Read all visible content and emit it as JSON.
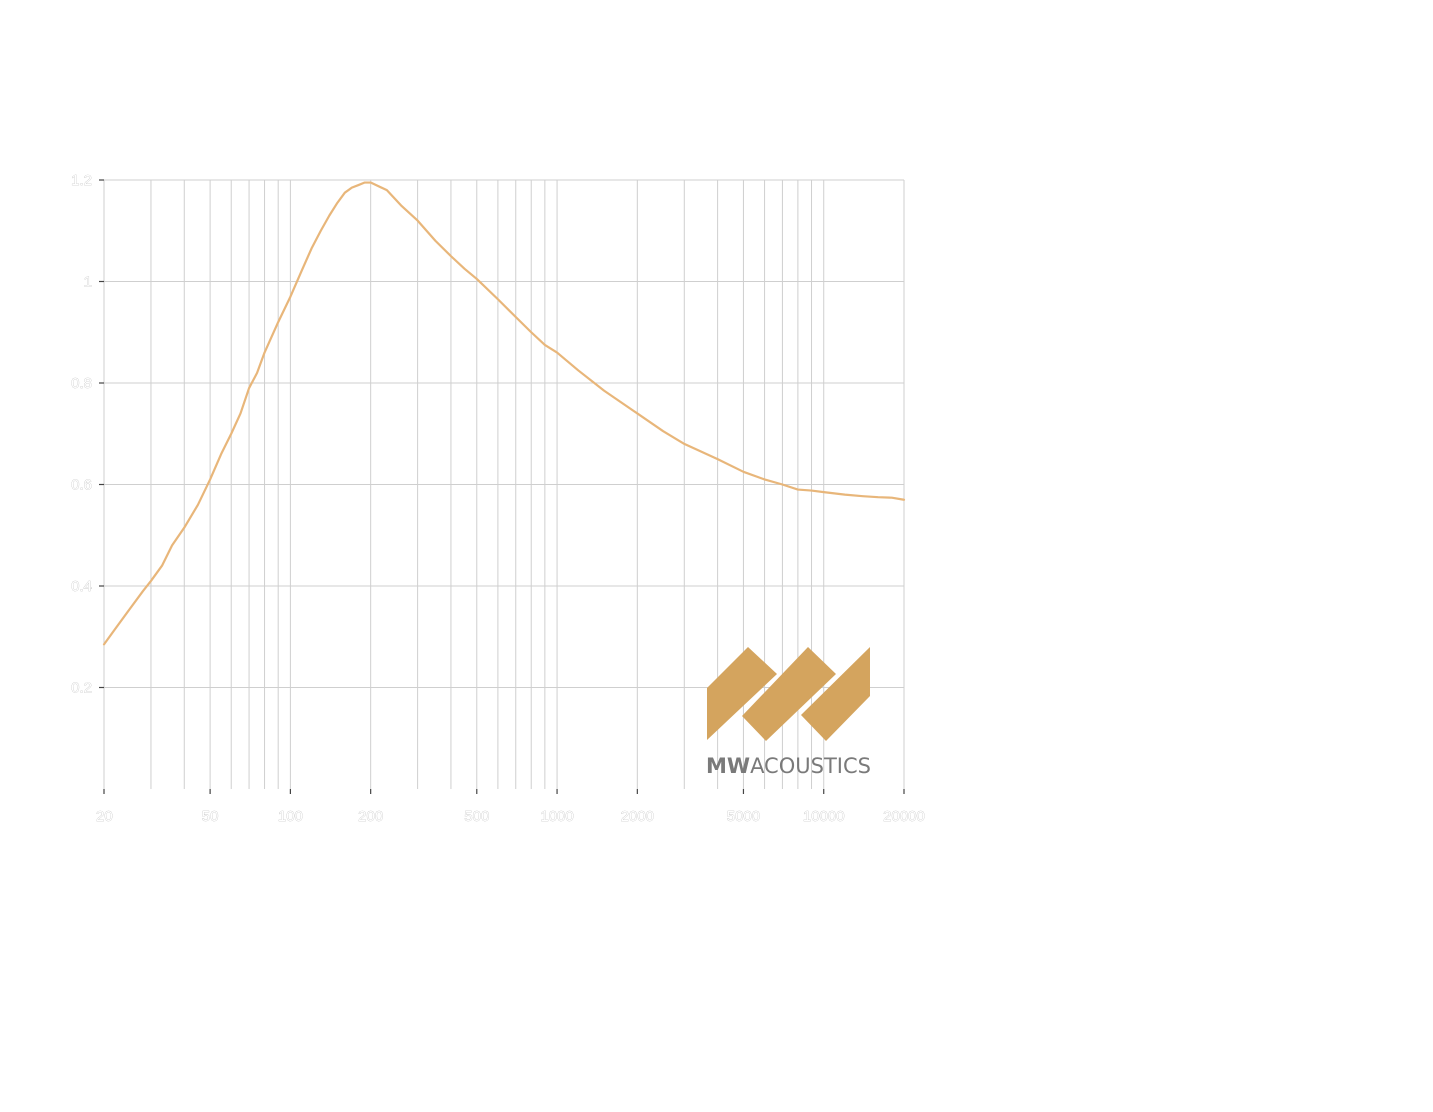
{
  "chart_data": {
    "type": "line",
    "title": "",
    "xlabel": "",
    "ylabel": "",
    "xscale": "log",
    "xlim": [
      20,
      20000
    ],
    "ylim": [
      0,
      1.2
    ],
    "grid": true,
    "x_ticks": [
      20,
      50,
      100,
      200,
      500,
      1000,
      2000,
      5000,
      10000,
      20000
    ],
    "x_tick_labels": [
      "20",
      "50",
      "100",
      "200",
      "500",
      "1000",
      "2000",
      "5000",
      "10000",
      "20000"
    ],
    "y_ticks": [
      0.2,
      0.4,
      0.6,
      0.8,
      1,
      1.2
    ],
    "y_tick_labels": [
      "0.2",
      "0.4",
      "0.6",
      "0.8",
      "1",
      "1.2"
    ],
    "series": [
      {
        "color": "#E8B67A",
        "x": [
          20,
          22,
          25,
          28,
          30,
          33,
          36,
          40,
          45,
          50,
          55,
          60,
          65,
          70,
          75,
          80,
          90,
          100,
          110,
          120,
          130,
          140,
          150,
          160,
          170,
          180,
          190,
          200,
          230,
          260,
          300,
          350,
          400,
          450,
          500,
          600,
          700,
          800,
          900,
          1000,
          1200,
          1500,
          2000,
          2500,
          3000,
          4000,
          5000,
          6000,
          7000,
          8000,
          9000,
          10000,
          12000,
          14000,
          16000,
          18000,
          20000
        ],
        "values": [
          0.285,
          0.315,
          0.355,
          0.39,
          0.41,
          0.44,
          0.48,
          0.515,
          0.56,
          0.61,
          0.66,
          0.7,
          0.74,
          0.79,
          0.82,
          0.86,
          0.92,
          0.97,
          1.02,
          1.065,
          1.1,
          1.13,
          1.155,
          1.175,
          1.185,
          1.19,
          1.195,
          1.195,
          1.18,
          1.15,
          1.12,
          1.08,
          1.05,
          1.025,
          1.005,
          0.965,
          0.93,
          0.9,
          0.875,
          0.86,
          0.825,
          0.785,
          0.74,
          0.705,
          0.68,
          0.65,
          0.625,
          0.61,
          0.6,
          0.59,
          0.588,
          0.585,
          0.58,
          0.577,
          0.575,
          0.574,
          0.57
        ]
      }
    ]
  },
  "logo": {
    "text_bold": "MW",
    "text_light": "ACOUSTICS",
    "color": "#D4A45E"
  }
}
